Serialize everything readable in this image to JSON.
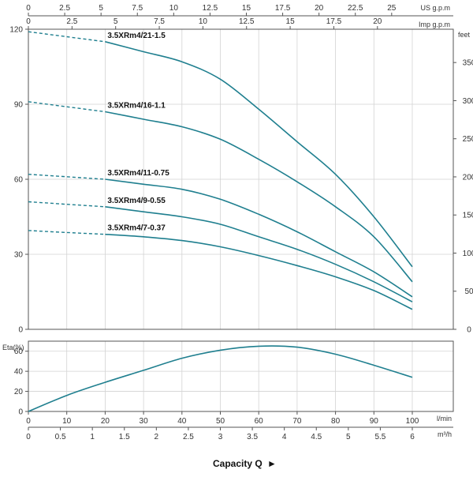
{
  "chart_data": [
    {
      "type": "line",
      "title": "",
      "xlabel": "",
      "ylabel": "",
      "y_right_unit": "feet",
      "x_top_units": [
        "US g.p.m",
        "Imp g.p.m"
      ],
      "x": [
        0,
        10,
        20,
        30,
        40,
        50,
        60,
        70,
        80,
        90,
        100
      ],
      "ylim": [
        0,
        120
      ],
      "y_right_lim_feet": [
        0,
        393.7
      ],
      "grid": true,
      "dashed_range": [
        0,
        20
      ],
      "series": [
        {
          "name": "3.5XRm4/21-1.5",
          "color": "#1f7f8f",
          "values": [
            119,
            117,
            115,
            111,
            107,
            100,
            88,
            75,
            62,
            45,
            25
          ]
        },
        {
          "name": "3.5XRm4/16-1.1",
          "color": "#1f7f8f",
          "values": [
            91,
            89,
            87,
            84,
            81,
            76,
            68,
            59,
            49,
            37,
            19
          ]
        },
        {
          "name": "3.5XRm4/11-0.75",
          "color": "#1f7f8f",
          "values": [
            62,
            61,
            60,
            58,
            56,
            52,
            46,
            39,
            31,
            23,
            13
          ]
        },
        {
          "name": "3.5XRm4/9-0.55",
          "color": "#1f7f8f",
          "values": [
            51,
            50,
            49,
            47,
            45,
            42,
            37,
            32,
            26,
            19,
            11
          ]
        },
        {
          "name": "3.5XRm4/7-0.37",
          "color": "#1f7f8f",
          "values": [
            39.5,
            38.7,
            38,
            37,
            35.5,
            33,
            29.5,
            25.5,
            21,
            15.5,
            8
          ]
        }
      ],
      "y_ticks_left": [
        "0",
        "30",
        "60",
        "90",
        "120"
      ],
      "y_ticks_right": [
        "0",
        "50",
        "100",
        "150",
        "200",
        "250",
        "300",
        "350"
      ]
    },
    {
      "type": "line",
      "title": "",
      "ylabel": "Eta(%)",
      "x": [
        0,
        10,
        20,
        30,
        40,
        50,
        60,
        70,
        80,
        90,
        100
      ],
      "ylim": [
        0,
        70
      ],
      "grid": true,
      "series": [
        {
          "name": "",
          "color": "#1f7f8f",
          "values": [
            0,
            16,
            29,
            41,
            53,
            61,
            65,
            64,
            57,
            46,
            34
          ]
        }
      ],
      "y_ticks": [
        "0",
        "20",
        "40",
        "60"
      ]
    }
  ],
  "axes": {
    "us_gpm_unit": "US g.p.m",
    "us_gpm_ticks": [
      "0",
      "2.5",
      "5",
      "7.5",
      "10",
      "12.5",
      "15",
      "17.5",
      "20",
      "22.5",
      "25"
    ],
    "imp_gpm_unit": "Imp g.p.m",
    "imp_gpm_ticks": [
      "0",
      "2.5",
      "5",
      "7.5",
      "10",
      "12.5",
      "15",
      "17.5",
      "20"
    ],
    "lmin_unit": "l/min",
    "lmin_ticks": [
      "0",
      "10",
      "20",
      "30",
      "40",
      "50",
      "60",
      "70",
      "80",
      "90",
      "100"
    ],
    "m3h_unit": "m³/h",
    "m3h_ticks": [
      "0",
      "0.5",
      "1",
      "1.5",
      "2",
      "2.5",
      "3",
      "3.5",
      "4",
      "4.5",
      "5",
      "5.5",
      "6"
    ],
    "feet_unit": "feet",
    "eta_unit": "Eta(%)"
  },
  "caption": {
    "text": "Capacity Q",
    "arrow": "►"
  }
}
